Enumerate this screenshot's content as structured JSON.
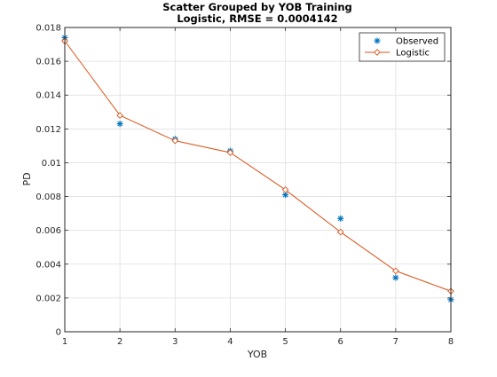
{
  "chart_data": {
    "type": "scatter",
    "title": [
      "Scatter Grouped by YOB Training",
      "Logistic, RMSE = 0.0004142"
    ],
    "xlabel": "YOB",
    "ylabel": "PD",
    "xlim": [
      1,
      8
    ],
    "ylim": [
      0,
      0.018
    ],
    "xticks": [
      1,
      2,
      3,
      4,
      5,
      6,
      7,
      8
    ],
    "xtick_labels": [
      "1",
      "2",
      "3",
      "4",
      "5",
      "6",
      "7",
      "8"
    ],
    "yticks": [
      0,
      0.002,
      0.004,
      0.006,
      0.008,
      0.01,
      0.012,
      0.014,
      0.016,
      0.018
    ],
    "ytick_labels": [
      "0",
      "0.002",
      "0.004",
      "0.006",
      "0.008",
      "0.01",
      "0.012",
      "0.014",
      "0.016",
      "0.018"
    ],
    "grid": true,
    "legend_position": "top-right",
    "series": [
      {
        "name": "Observed",
        "kind": "markers",
        "marker": "asterisk",
        "color": "#0072bd",
        "x": [
          1,
          2,
          3,
          4,
          5,
          6,
          7,
          8
        ],
        "y": [
          0.0174,
          0.0123,
          0.0114,
          0.0107,
          0.0081,
          0.0067,
          0.0032,
          0.0019
        ]
      },
      {
        "name": "Logistic",
        "kind": "line-markers",
        "marker": "diamond",
        "color": "#d95319",
        "x": [
          1,
          2,
          3,
          4,
          5,
          6,
          7,
          8
        ],
        "y": [
          0.0172,
          0.0128,
          0.0113,
          0.0106,
          0.0084,
          0.0059,
          0.0036,
          0.0024
        ]
      }
    ]
  }
}
